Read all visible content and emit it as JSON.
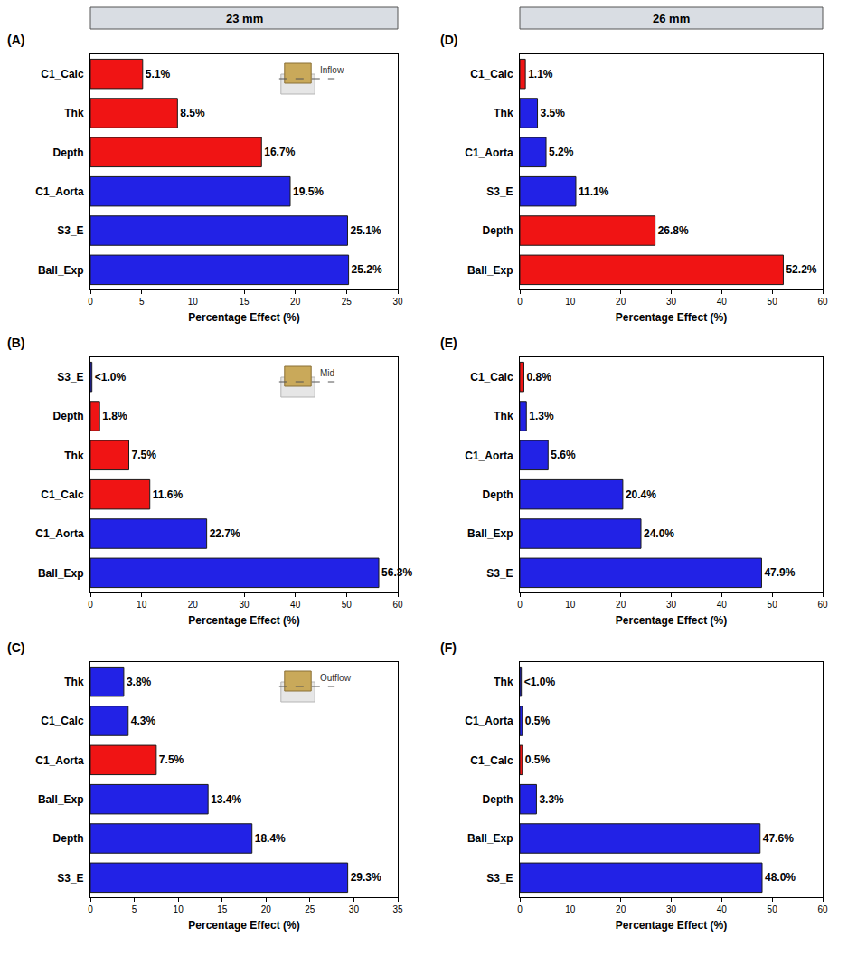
{
  "column_titles": [
    "23 mm",
    "26 mm"
  ],
  "chart_data": [
    {
      "type": "bar",
      "panel": "(A)",
      "annotation": "Inflow",
      "orientation": "horizontal",
      "data_labels": true,
      "grid": false,
      "xlabel": "Percentage Effect (%)",
      "categories": [
        "C1_Calc",
        "Thk",
        "Depth",
        "C1_Aorta",
        "S3_E",
        "Ball_Exp"
      ],
      "values": [
        5.1,
        8.5,
        16.7,
        19.5,
        25.1,
        25.2
      ],
      "value_labels": [
        "5.1%",
        "8.5%",
        "16.7%",
        "19.5%",
        "25.1%",
        "25.2%"
      ],
      "colors": [
        "#f01414",
        "#f01414",
        "#f01414",
        "#2222e6",
        "#2222e6",
        "#2222e6"
      ],
      "xlim": [
        0,
        30
      ],
      "xticks": [
        0,
        5,
        10,
        15,
        20,
        25,
        30
      ]
    },
    {
      "type": "bar",
      "panel": "(B)",
      "annotation": "Mid",
      "orientation": "horizontal",
      "data_labels": true,
      "grid": false,
      "xlabel": "Percentage Effect (%)",
      "categories": [
        "S3_E",
        "Depth",
        "Thk",
        "C1_Calc",
        "C1_Aorta",
        "Ball_Exp"
      ],
      "values": [
        0.3,
        1.8,
        7.5,
        11.6,
        22.7,
        56.3
      ],
      "value_labels": [
        "<1.0%",
        "1.8%",
        "7.5%",
        "11.6%",
        "22.7%",
        "56.3%"
      ],
      "colors": [
        "#2222e6",
        "#f01414",
        "#f01414",
        "#f01414",
        "#2222e6",
        "#2222e6"
      ],
      "xlim": [
        0,
        60
      ],
      "xticks": [
        0,
        10,
        20,
        30,
        40,
        50,
        60
      ]
    },
    {
      "type": "bar",
      "panel": "(C)",
      "annotation": "Outflow",
      "orientation": "horizontal",
      "data_labels": true,
      "grid": false,
      "xlabel": "Percentage Effect (%)",
      "categories": [
        "Thk",
        "C1_Calc",
        "C1_Aorta",
        "Ball_Exp",
        "Depth",
        "S3_E"
      ],
      "values": [
        3.8,
        4.3,
        7.5,
        13.4,
        18.4,
        29.3
      ],
      "value_labels": [
        "3.8%",
        "4.3%",
        "7.5%",
        "13.4%",
        "18.4%",
        "29.3%"
      ],
      "colors": [
        "#2222e6",
        "#2222e6",
        "#f01414",
        "#2222e6",
        "#2222e6",
        "#2222e6"
      ],
      "xlim": [
        0,
        35
      ],
      "xticks": [
        0,
        5,
        10,
        15,
        20,
        25,
        30,
        35
      ]
    },
    {
      "type": "bar",
      "panel": "(D)",
      "orientation": "horizontal",
      "data_labels": true,
      "grid": false,
      "xlabel": "Percentage Effect (%)",
      "categories": [
        "C1_Calc",
        "Thk",
        "C1_Aorta",
        "S3_E",
        "Depth",
        "Ball_Exp"
      ],
      "values": [
        1.1,
        3.5,
        5.2,
        11.1,
        26.8,
        52.2
      ],
      "value_labels": [
        "1.1%",
        "3.5%",
        "5.2%",
        "11.1%",
        "26.8%",
        "52.2%"
      ],
      "colors": [
        "#f01414",
        "#2222e6",
        "#2222e6",
        "#2222e6",
        "#f01414",
        "#f01414"
      ],
      "xlim": [
        0,
        60
      ],
      "xticks": [
        0,
        10,
        20,
        30,
        40,
        50,
        60
      ]
    },
    {
      "type": "bar",
      "panel": "(E)",
      "orientation": "horizontal",
      "data_labels": true,
      "grid": false,
      "xlabel": "Percentage Effect (%)",
      "categories": [
        "C1_Calc",
        "Thk",
        "C1_Aorta",
        "Depth",
        "Ball_Exp",
        "S3_E"
      ],
      "values": [
        0.8,
        1.3,
        5.6,
        20.4,
        24.0,
        47.9
      ],
      "value_labels": [
        "0.8%",
        "1.3%",
        "5.6%",
        "20.4%",
        "24.0%",
        "47.9%"
      ],
      "colors": [
        "#f01414",
        "#2222e6",
        "#2222e6",
        "#2222e6",
        "#2222e6",
        "#2222e6"
      ],
      "xlim": [
        0,
        60
      ],
      "xticks": [
        0,
        10,
        20,
        30,
        40,
        50,
        60
      ]
    },
    {
      "type": "bar",
      "panel": "(F)",
      "orientation": "horizontal",
      "data_labels": true,
      "grid": false,
      "xlabel": "Percentage Effect (%)",
      "categories": [
        "Thk",
        "C1_Aorta",
        "C1_Calc",
        "Depth",
        "Ball_Exp",
        "S3_E"
      ],
      "values": [
        0.3,
        0.5,
        0.5,
        3.3,
        47.6,
        48.0
      ],
      "value_labels": [
        "<1.0%",
        "0.5%",
        "0.5%",
        "3.3%",
        "47.6%",
        "48.0%"
      ],
      "colors": [
        "#2222e6",
        "#2222e6",
        "#f01414",
        "#2222e6",
        "#2222e6",
        "#2222e6"
      ],
      "xlim": [
        0,
        60
      ],
      "xticks": [
        0,
        10,
        20,
        30,
        40,
        50,
        60
      ]
    }
  ]
}
